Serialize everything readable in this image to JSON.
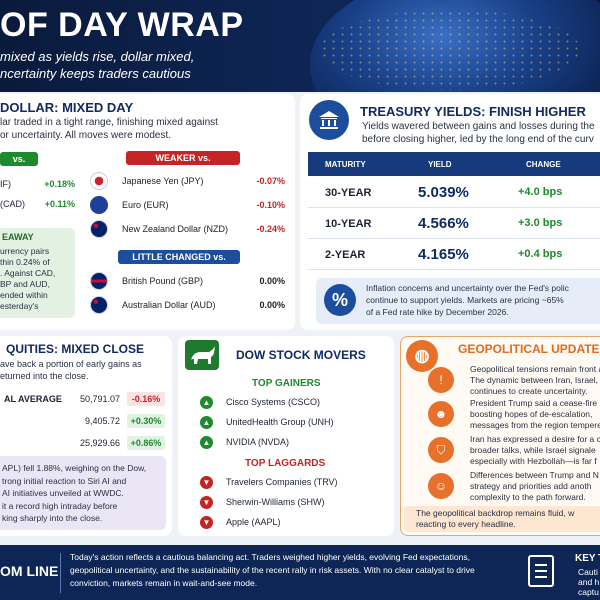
{
  "header": {
    "title": "OF DAY WRAP",
    "subtitle_line1": "mixed as yields rise, dollar mixed,",
    "subtitle_line2": "ncertainty keeps traders cautious"
  },
  "dollar": {
    "title": "DOLLAR: MIXED DAY",
    "desc_line1": "lar traded in a tight range, finishing mixed against",
    "desc_line2": "or uncertainty. All moves were modest.",
    "stronger_label": "vs.",
    "stronger": [
      {
        "name": "IF)",
        "value": "+0.18%"
      },
      {
        "name": "(CAD)",
        "value": "+0.11%"
      }
    ],
    "weaker_label": "WEAKER vs.",
    "weaker": [
      {
        "flag": "flag-japan-icon",
        "name": "Japanese Yen (JPY)",
        "value": "-0.07%"
      },
      {
        "flag": "flag-eu-icon",
        "name": "Euro (EUR)",
        "value": "-0.10%"
      },
      {
        "flag": "flag-nz-icon",
        "name": "New Zealand Dollar (NZD)",
        "value": "-0.24%"
      }
    ],
    "unchanged_label": "LITTLE CHANGED vs.",
    "unchanged": [
      {
        "flag": "flag-uk-icon",
        "name": "British Pound (GBP)",
        "value": "0.00%"
      },
      {
        "flag": "flag-au-icon",
        "name": "Australian Dollar (AUD)",
        "value": "0.00%"
      }
    ],
    "takeaway_label": "EAWAY",
    "takeaway_lines": [
      "urrency pairs",
      "thin 0.24% of",
      ". Against CAD,",
      "BP and AUD,",
      "ended within",
      "esterday's"
    ]
  },
  "treasury": {
    "icon": "bank-icon",
    "title": "TREASURY YIELDS: FINISH HIGHER",
    "desc_line1": "Yields wavered between gains and losses during the",
    "desc_line2": "before closing higher, led by the long end of the curv",
    "columns": [
      "MATURITY",
      "YIELD",
      "CHANGE"
    ],
    "rows": [
      {
        "maturity": "30-YEAR",
        "yield": "5.039%",
        "change": "+4.0 bps"
      },
      {
        "maturity": "10-YEAR",
        "yield": "4.566%",
        "change": "+3.0 bps"
      },
      {
        "maturity": "2-YEAR",
        "yield": "4.165%",
        "change": "+0.4 bps"
      }
    ],
    "note_icon": "percent-icon",
    "note_line1": "Inflation concerns and uncertainty over the Fed's polic",
    "note_line2": "continue to support yields. Markets are pricing ~65%",
    "note_line3": "of a Fed rate hike by December 2026."
  },
  "equities": {
    "title": "QUITIES: MIXED CLOSE",
    "desc_line1": "ave back a portion of early gains as",
    "desc_line2": "eturned into the close.",
    "rows": [
      {
        "name": "AL AVERAGE",
        "level": "50,791.07",
        "change": "-0.16%"
      },
      {
        "name": "",
        "level": "9,405.72",
        "change": "+0.30%"
      },
      {
        "name": "",
        "level": "25,929.66",
        "change": "+0.86%"
      }
    ],
    "note_lines": [
      "APL) fell 1.88%, weighing on the Dow,",
      "trong initial reaction to Siri AI and",
      "AI initiatives unveiled at WWDC.",
      "it a record high intraday before",
      "king sharply into the close."
    ]
  },
  "movers": {
    "icon": "bull-icon",
    "title": "DOW STOCK MOVERS",
    "gainers_label": "TOP GAINERS",
    "gainers": [
      "Cisco Systems (CSCO)",
      "UnitedHealth Group (UNH)",
      "NVIDIA (NVDA)"
    ],
    "laggards_label": "TOP LAGGARDS",
    "laggards": [
      "Travelers Companies (TRV)",
      "Sherwin-Williams (SHW)",
      "Apple (AAPL)"
    ]
  },
  "geo": {
    "icon": "globe-icon",
    "title": "GEOPOLITICAL UPDATE",
    "items": [
      {
        "icon": "warning-icon",
        "lines": [
          "Geopolitical tensions remain front a",
          "The dynamic between Iran, Israel,",
          "continues to create uncertainty."
        ]
      },
      {
        "icon": "person-icon",
        "lines": [
          "President Trump said a cease-fire",
          "boosting hopes of de-escalation,",
          "messages from the region tempere"
        ]
      },
      {
        "icon": "shield-icon",
        "lines": [
          "Iran has expressed a desire for a c",
          "broader talks, while Israel signale",
          "especially with Hezbollah—is far f"
        ]
      },
      {
        "icon": "people-icon",
        "lines": [
          "Differences between Trump and N",
          "strategy and priorities add anoth",
          "complexity to the path forward."
        ]
      }
    ],
    "footer_line1": "The geopolitical backdrop remains fluid, w",
    "footer_line2": "reacting to every headline."
  },
  "bottom": {
    "label": "OM LINE",
    "text_line1": "Today's action reflects a cautious balancing act. Traders weighed higher yields, evolving Fed expectations,",
    "text_line2": "geopolitical uncertainty, and the sustainability of the recent rally in risk assets. With no clear catalyst to drive",
    "text_line3": "conviction, markets remain in wait-and-see mode.",
    "key_label": "KEY T",
    "key_line1": "Cauti",
    "key_line2": "and h",
    "key_line3": "captu",
    "key_icon": "clipboard-icon"
  },
  "colors": {
    "navy": "#0e2656",
    "green": "#1e8a2e",
    "red": "#c42424",
    "orange": "#e7702a"
  }
}
